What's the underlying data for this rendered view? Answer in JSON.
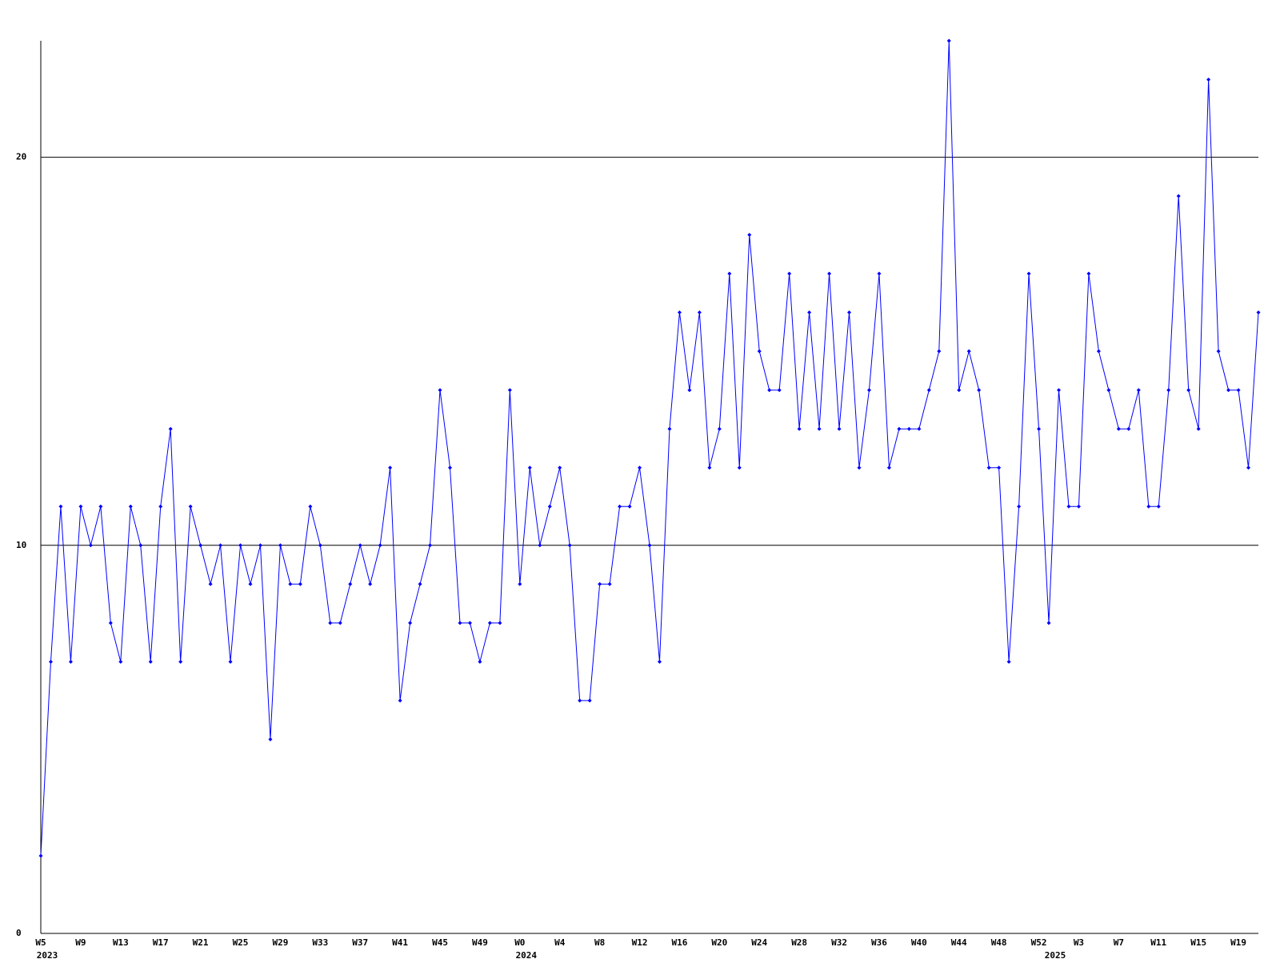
{
  "chart_data": {
    "type": "line",
    "color": "#0000ff",
    "ylim": [
      0,
      23
    ],
    "yticks": [
      0,
      10,
      20
    ],
    "grid": true,
    "markers": true,
    "categories": [
      "W5",
      null,
      null,
      null,
      "W9",
      null,
      null,
      null,
      "W13",
      null,
      null,
      null,
      "W17",
      null,
      null,
      null,
      "W21",
      null,
      null,
      null,
      "W25",
      null,
      null,
      null,
      "W29",
      null,
      null,
      null,
      "W33",
      null,
      null,
      null,
      "W37",
      null,
      null,
      null,
      "W41",
      null,
      null,
      null,
      "W45",
      null,
      null,
      null,
      "W49",
      null,
      null,
      null,
      "W0",
      null,
      null,
      null,
      "W4",
      null,
      null,
      null,
      "W8",
      null,
      null,
      null,
      "W12",
      null,
      null,
      null,
      "W16",
      null,
      null,
      null,
      "W20",
      null,
      null,
      null,
      "W24",
      null,
      null,
      null,
      "W28",
      null,
      null,
      null,
      "W32",
      null,
      null,
      null,
      "W36",
      null,
      null,
      null,
      "W40",
      null,
      null,
      null,
      "W44",
      null,
      null,
      null,
      "W48",
      null,
      null,
      null,
      "W52",
      null,
      null,
      null,
      "W3",
      null,
      null,
      null,
      "W7",
      null,
      null,
      null,
      "W11",
      null,
      null,
      null,
      "W15",
      null,
      null,
      null,
      "W19",
      null,
      null
    ],
    "year_labels": [
      {
        "category": 0,
        "label": "2023"
      },
      {
        "category": 48,
        "label": "2024"
      },
      {
        "category": 101,
        "label": "2025"
      }
    ],
    "values": [
      2,
      7,
      11,
      7,
      11,
      10,
      11,
      8,
      7,
      11,
      10,
      7,
      11,
      13,
      7,
      11,
      10,
      9,
      10,
      7,
      10,
      9,
      10,
      5,
      10,
      9,
      9,
      11,
      10,
      8,
      8,
      9,
      10,
      9,
      10,
      12,
      6,
      8,
      9,
      10,
      14,
      12,
      8,
      8,
      7,
      8,
      8,
      14,
      9,
      12,
      10,
      11,
      12,
      10,
      6,
      6,
      9,
      9,
      11,
      11,
      12,
      10,
      7,
      13,
      16,
      14,
      16,
      12,
      13,
      17,
      12,
      18,
      15,
      14,
      14,
      17,
      13,
      16,
      13,
      17,
      13,
      16,
      12,
      14,
      17,
      12,
      13,
      13,
      13,
      14,
      15,
      23,
      14,
      15,
      14,
      12,
      12,
      7,
      11,
      17,
      13,
      8,
      14,
      11,
      11,
      17,
      15,
      14,
      13,
      13,
      14,
      11,
      11,
      14,
      19,
      14,
      13,
      22,
      15,
      14,
      14,
      12,
      16
    ]
  }
}
